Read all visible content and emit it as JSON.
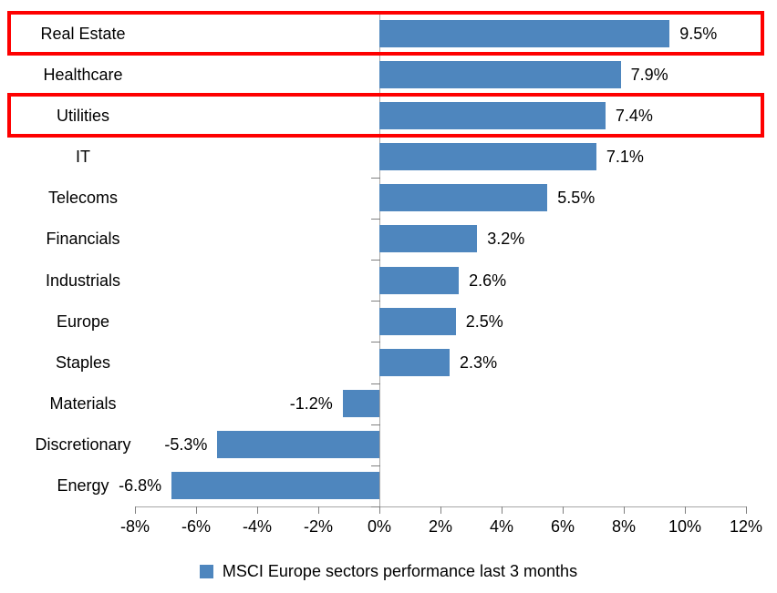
{
  "chart_data": {
    "type": "bar",
    "orientation": "horizontal",
    "title": "",
    "xlabel": "",
    "ylabel": "",
    "categories": [
      "Real Estate",
      "Healthcare",
      "Utilities",
      "IT",
      "Telecoms",
      "Financials",
      "Industrials",
      "Europe",
      "Staples",
      "Materials",
      "Discretionary",
      "Energy"
    ],
    "values": [
      9.5,
      7.9,
      7.4,
      7.1,
      5.5,
      3.2,
      2.6,
      2.5,
      2.3,
      -1.2,
      -5.3,
      -6.8
    ],
    "data_labels": [
      "9.5%",
      "7.9%",
      "7.4%",
      "7.1%",
      "5.5%",
      "3.2%",
      "2.6%",
      "2.5%",
      "2.3%",
      "-1.2%",
      "-5.3%",
      "-6.8%"
    ],
    "xlim": [
      -8,
      12
    ],
    "xtick_labels": [
      "-8%",
      "-6%",
      "-4%",
      "-2%",
      "0%",
      "2%",
      "4%",
      "6%",
      "8%",
      "10%",
      "12%"
    ],
    "grid": false,
    "legend_position": "bottom",
    "legend_label": "MSCI Europe sectors performance last 3 months",
    "highlighted_categories": [
      "Real Estate",
      "Utilities"
    ],
    "highlight_row_indices": [
      0,
      2
    ],
    "colors": {
      "bar": "#4e86be",
      "highlight_border": "#fe0000",
      "axis_line": "#a6a6a6",
      "tick_mark": "#7f7f7f",
      "text": "#000000"
    }
  }
}
